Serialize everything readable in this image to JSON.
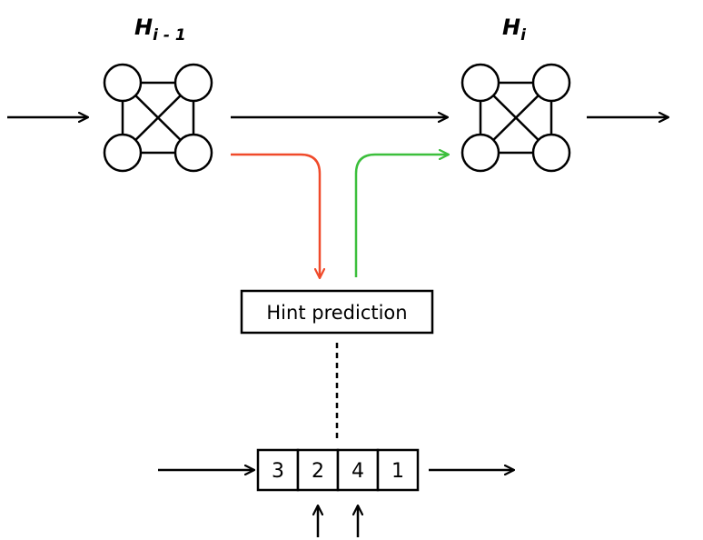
{
  "states": {
    "prev": {
      "base": "H",
      "subscript": "i - 1"
    },
    "curr": {
      "base": "H",
      "subscript": "i"
    }
  },
  "hint_box": {
    "label": "Hint prediction"
  },
  "array": {
    "cells": [
      "3",
      "2",
      "4",
      "1"
    ]
  },
  "colors": {
    "stroke": "#000000",
    "encode_arrow": "#f04a2a",
    "decode_arrow": "#3cbf3c"
  }
}
